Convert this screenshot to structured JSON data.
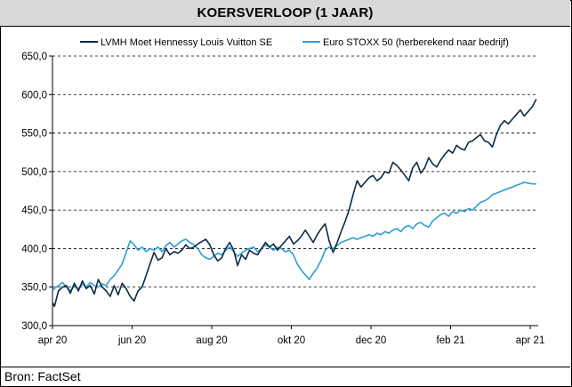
{
  "chart_data": {
    "type": "line",
    "title": "KOERSVERLOOP (1 JAAR)",
    "source": "Bron: FactSet",
    "xlabel": "",
    "ylabel": "",
    "ylim": [
      300,
      650
    ],
    "yticks": [
      "300,0",
      "350,0",
      "400,0",
      "450,0",
      "500,0",
      "550,0",
      "600,0",
      "650,0"
    ],
    "ytick_values": [
      300,
      350,
      400,
      450,
      500,
      550,
      600,
      650
    ],
    "xticks": [
      "apr 20",
      "jun 20",
      "aug 20",
      "okt 20",
      "dec 20",
      "feb 21",
      "apr 21"
    ],
    "x_range": [
      0,
      12.2
    ],
    "grid": "horizontal dashed",
    "legend_position": "top",
    "colors": {
      "lvmh": "#0d2b45",
      "stoxx": "#2a9fd6"
    },
    "series": [
      {
        "name": "LVMH Moet Hennessy Louis Vuitton SE",
        "color": "#0d2b45",
        "x": [
          0.0,
          0.05,
          0.15,
          0.25,
          0.35,
          0.45,
          0.55,
          0.65,
          0.75,
          0.85,
          0.95,
          1.05,
          1.15,
          1.25,
          1.35,
          1.45,
          1.55,
          1.65,
          1.75,
          1.85,
          1.95,
          2.05,
          2.15,
          2.25,
          2.35,
          2.45,
          2.55,
          2.65,
          2.75,
          2.85,
          2.95,
          3.05,
          3.15,
          3.25,
          3.35,
          3.45,
          3.55,
          3.65,
          3.75,
          3.85,
          3.95,
          4.05,
          4.15,
          4.25,
          4.35,
          4.45,
          4.55,
          4.65,
          4.75,
          4.85,
          4.95,
          5.05,
          5.15,
          5.25,
          5.35,
          5.45,
          5.55,
          5.65,
          5.75,
          5.85,
          5.95,
          6.05,
          6.15,
          6.25,
          6.35,
          6.45,
          6.55,
          6.65,
          6.75,
          6.85,
          6.95,
          7.05,
          7.15,
          7.25,
          7.35,
          7.45,
          7.55,
          7.65,
          7.75,
          7.85,
          7.95,
          8.05,
          8.15,
          8.25,
          8.35,
          8.45,
          8.55,
          8.65,
          8.75,
          8.85,
          8.95,
          9.05,
          9.15,
          9.25,
          9.35,
          9.45,
          9.55,
          9.65,
          9.75,
          9.85,
          9.95,
          10.05,
          10.15,
          10.25,
          10.35,
          10.45,
          10.55,
          10.65,
          10.75,
          10.85,
          10.95,
          11.05,
          11.15,
          11.25,
          11.35,
          11.45,
          11.55,
          11.65,
          11.75,
          11.85,
          11.95,
          12.05,
          12.15
        ],
        "values": [
          330,
          325,
          345,
          350,
          352,
          342,
          355,
          345,
          358,
          348,
          352,
          341,
          360,
          350,
          345,
          338,
          352,
          340,
          355,
          348,
          338,
          332,
          345,
          350,
          365,
          380,
          395,
          385,
          388,
          400,
          392,
          396,
          394,
          398,
          405,
          400,
          402,
          406,
          409,
          412,
          405,
          392,
          384,
          388,
          400,
          408,
          398,
          378,
          392,
          386,
          398,
          394,
          392,
          400,
          408,
          402,
          406,
          398,
          404,
          410,
          416,
          406,
          410,
          416,
          424,
          416,
          408,
          418,
          426,
          432,
          410,
          395,
          408,
          422,
          435,
          450,
          470,
          488,
          480,
          486,
          492,
          495,
          488,
          492,
          500,
          498,
          512,
          508,
          502,
          495,
          488,
          505,
          512,
          498,
          505,
          518,
          510,
          506,
          515,
          522,
          528,
          524,
          534,
          530,
          528,
          538,
          540,
          544,
          548,
          540,
          538,
          532,
          548,
          560,
          566,
          562,
          568,
          574,
          580,
          572,
          578,
          584,
          594
        ]
      },
      {
        "name": "Euro STOXX 50 (herberekend naar bedrijf)",
        "color": "#2a9fd6",
        "x": [
          0.0,
          0.05,
          0.15,
          0.25,
          0.35,
          0.45,
          0.55,
          0.65,
          0.75,
          0.85,
          0.95,
          1.05,
          1.15,
          1.25,
          1.35,
          1.45,
          1.55,
          1.65,
          1.75,
          1.85,
          1.95,
          2.05,
          2.15,
          2.25,
          2.35,
          2.45,
          2.55,
          2.65,
          2.75,
          2.85,
          2.95,
          3.05,
          3.15,
          3.25,
          3.35,
          3.45,
          3.55,
          3.65,
          3.75,
          3.85,
          3.95,
          4.05,
          4.15,
          4.25,
          4.35,
          4.45,
          4.55,
          4.65,
          4.75,
          4.85,
          4.95,
          5.05,
          5.15,
          5.25,
          5.35,
          5.45,
          5.55,
          5.65,
          5.75,
          5.85,
          5.95,
          6.05,
          6.15,
          6.25,
          6.35,
          6.45,
          6.55,
          6.65,
          6.75,
          6.85,
          6.95,
          7.05,
          7.15,
          7.25,
          7.35,
          7.45,
          7.55,
          7.65,
          7.75,
          7.85,
          7.95,
          8.05,
          8.15,
          8.25,
          8.35,
          8.45,
          8.55,
          8.65,
          8.75,
          8.85,
          8.95,
          9.05,
          9.15,
          9.25,
          9.35,
          9.45,
          9.55,
          9.65,
          9.75,
          9.85,
          9.95,
          10.05,
          10.15,
          10.25,
          10.35,
          10.45,
          10.55,
          10.65,
          10.75,
          10.85,
          10.95,
          11.05,
          11.15,
          11.25,
          11.35,
          11.45,
          11.55,
          11.65,
          11.75,
          11.85,
          11.95,
          12.05,
          12.15
        ],
        "values": [
          345,
          348,
          352,
          356,
          350,
          345,
          352,
          348,
          354,
          350,
          356,
          352,
          350,
          354,
          352,
          360,
          365,
          372,
          380,
          395,
          410,
          405,
          398,
          402,
          396,
          400,
          398,
          402,
          396,
          404,
          408,
          402,
          406,
          410,
          412,
          408,
          405,
          400,
          392,
          388,
          386,
          390,
          394,
          392,
          398,
          402,
          396,
          390,
          394,
          398,
          400,
          402,
          396,
          400,
          405,
          402,
          398,
          402,
          400,
          396,
          398,
          392,
          380,
          372,
          366,
          360,
          368,
          375,
          385,
          398,
          402,
          400,
          404,
          408,
          410,
          412,
          414,
          412,
          414,
          416,
          418,
          416,
          420,
          418,
          422,
          420,
          424,
          426,
          422,
          428,
          430,
          426,
          432,
          434,
          430,
          428,
          436,
          440,
          444,
          446,
          442,
          448,
          446,
          450,
          448,
          452,
          450,
          455,
          460,
          462,
          465,
          470,
          472,
          474,
          476,
          478,
          480,
          482,
          484,
          486,
          485,
          484,
          484
        ]
      }
    ]
  }
}
